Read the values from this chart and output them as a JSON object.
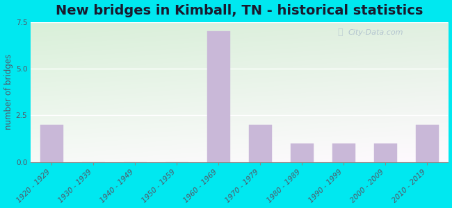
{
  "title": "New bridges in Kimball, TN - historical statistics",
  "ylabel": "number of bridges",
  "categories": [
    "1920 - 1929",
    "1930 - 1939",
    "1940 - 1949",
    "1950 - 1959",
    "1960 - 1969",
    "1970 - 1979",
    "1980 - 1989",
    "1990 - 1999",
    "2000 - 2009",
    "2010 - 2019"
  ],
  "values": [
    2,
    0,
    0,
    0,
    7,
    2,
    1,
    1,
    1,
    2
  ],
  "bar_color": "#c9b8d8",
  "ylim": [
    0,
    7.5
  ],
  "yticks": [
    0,
    2.5,
    5,
    7.5
  ],
  "bg_outer": "#00e8f0",
  "bg_plot_color1": "#d4edda",
  "bg_plot_color2": "#f0f8f0",
  "title_fontsize": 14,
  "axis_label_fontsize": 8.5,
  "tick_label_fontsize": 7.5,
  "title_color": "#1a1a2e",
  "label_color": "#555566",
  "watermark_text": "City-Data.com",
  "watermark_color": "#aabbcc",
  "grid_color": "#ffffff"
}
